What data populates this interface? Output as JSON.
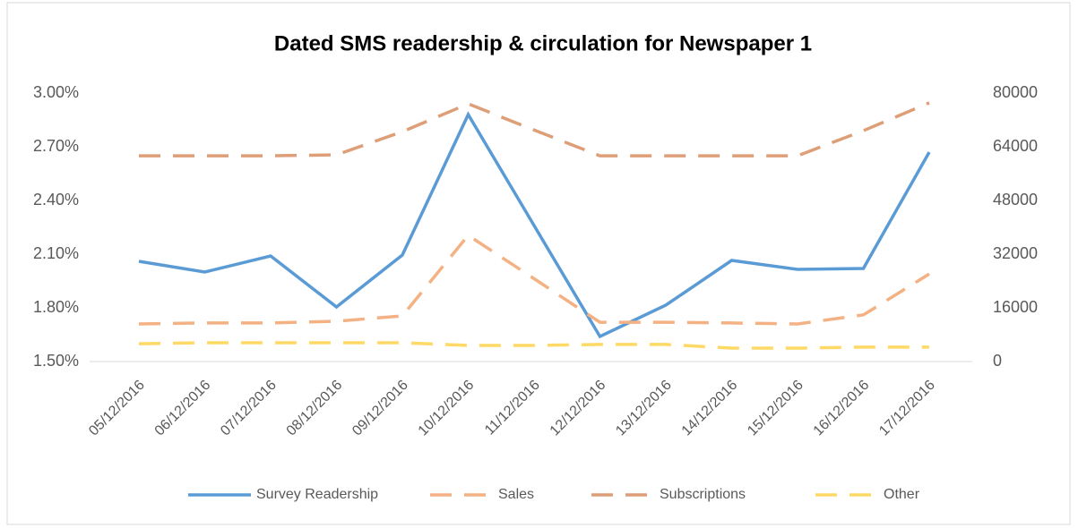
{
  "chart_data": {
    "type": "line",
    "title": "Dated SMS readership & circulation for Newspaper 1",
    "categories": [
      "05/12/2016",
      "06/12/2016",
      "07/12/2016",
      "08/12/2016",
      "09/12/2016",
      "10/12/2016",
      "11/12/2016",
      "12/12/2016",
      "13/12/2016",
      "14/12/2016",
      "15/12/2016",
      "16/12/2016",
      "17/12/2016"
    ],
    "series": [
      {
        "name": "Survey Readership",
        "color": "#5b9bd5",
        "dash": false,
        "values": [
          2.06,
          2.0,
          2.09,
          1.805,
          2.095,
          2.88,
          2.26,
          1.64,
          1.815,
          2.065,
          2.015,
          2.02,
          2.67
        ]
      },
      {
        "name": "Sales",
        "color": "#f4b183",
        "dash": true,
        "axis": "y2",
        "values": [
          11200,
          11500,
          11500,
          12000,
          13600,
          37600,
          24700,
          11700,
          11700,
          11500,
          11200,
          13900,
          26100
        ]
      },
      {
        "name": "Subscriptions",
        "color": "#dd9e78",
        "dash": true,
        "axis": "y2",
        "values": [
          61300,
          61300,
          61300,
          61600,
          68500,
          76800,
          69000,
          61300,
          61300,
          61300,
          61300,
          68800,
          77100
        ]
      },
      {
        "name": "Other",
        "color": "#ffd966",
        "dash": true,
        "axis": "y2",
        "values": [
          5300,
          5600,
          5600,
          5600,
          5600,
          4800,
          4800,
          5100,
          5100,
          4000,
          4000,
          4300,
          4300
        ]
      }
    ],
    "ylim": [
      1.5,
      3.0
    ],
    "yticks": [
      {
        "value": 1.5,
        "label": "1.50%"
      },
      {
        "value": 1.8,
        "label": "1.80%"
      },
      {
        "value": 2.1,
        "label": "2.10%"
      },
      {
        "value": 2.4,
        "label": "2.40%"
      },
      {
        "value": 2.7,
        "label": "2.70%"
      },
      {
        "value": 3.0,
        "label": "3.00%"
      }
    ],
    "y2lim": [
      0,
      80000
    ],
    "y2ticks": [
      0,
      16000,
      32000,
      48000,
      64000,
      80000
    ],
    "legend": "bottom"
  }
}
